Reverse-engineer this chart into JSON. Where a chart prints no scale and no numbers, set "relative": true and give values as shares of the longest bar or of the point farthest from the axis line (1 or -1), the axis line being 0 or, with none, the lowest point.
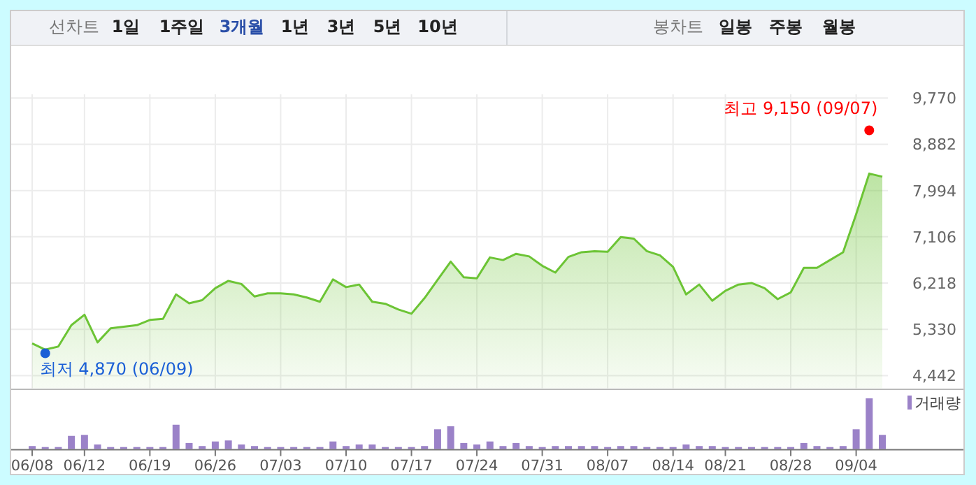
{
  "chart_data": [
    {
      "type": "other",
      "annotations": [
        "선차트",
        "1일",
        "1주일",
        "3개월",
        "1년",
        "3년",
        "5년",
        "10년",
        "봉차트",
        "일봉",
        "주봉",
        "월봉"
      ]
    },
    {
      "type": "area",
      "annotations": [
        "최고 9,150 (09/07)",
        "최저 4,870 (06/09)"
      ],
      "series": [
        {
          "type": "area",
          "color": "#6cc435",
          "values": [
            5060,
            4940,
            5000,
            5410,
            5610,
            5080,
            5350,
            5380,
            5410,
            5510,
            5530,
            6000,
            5830,
            5890,
            6120,
            6260,
            6200,
            5960,
            6020,
            6020,
            6000,
            5940,
            5860,
            6290,
            6140,
            6190,
            5860,
            5820,
            5710,
            5630,
            5930,
            6280,
            6630,
            6330,
            6310,
            6710,
            6660,
            6780,
            6730,
            6550,
            6420,
            6720,
            6810,
            6830,
            6820,
            7100,
            7070,
            6830,
            6750,
            6530,
            6000,
            6190,
            5880,
            6070,
            6190,
            6220,
            6120,
            5910,
            6040,
            6510,
            6510,
            6660,
            6810,
            7540,
            8320,
            8260
          ]
        },
        {
          "type": "scatter",
          "color": "#ff0000",
          "values": [
            null,
            null,
            null,
            null,
            null,
            null,
            null,
            null,
            null,
            null,
            null,
            null,
            null,
            null,
            null,
            null,
            null,
            null,
            null,
            null,
            null,
            null,
            null,
            null,
            null,
            null,
            null,
            null,
            null,
            null,
            null,
            null,
            null,
            null,
            null,
            null,
            null,
            null,
            null,
            null,
            null,
            null,
            null,
            null,
            null,
            null,
            null,
            null,
            null,
            null,
            null,
            null,
            null,
            null,
            null,
            null,
            null,
            null,
            null,
            null,
            null,
            null,
            null,
            null,
            9150,
            null
          ]
        },
        {
          "type": "scatter",
          "color": "#1a5fd6",
          "values": [
            null,
            4870,
            null,
            null,
            null,
            null,
            null,
            null,
            null,
            null,
            null,
            null,
            null,
            null,
            null,
            null,
            null,
            null,
            null,
            null,
            null,
            null,
            null,
            null,
            null,
            null,
            null,
            null,
            null,
            null,
            null,
            null,
            null,
            null,
            null,
            null,
            null,
            null,
            null,
            null,
            null,
            null,
            null,
            null,
            null,
            null,
            null,
            null,
            null,
            null,
            null,
            null,
            null,
            null,
            null,
            null,
            null,
            null,
            null,
            null,
            null,
            null,
            null,
            null,
            null,
            null
          ]
        }
      ],
      "ylim": [
        4185,
        10780
      ],
      "yticks": [
        {
          "value": 4442,
          "label": "4,442"
        },
        {
          "value": 5330,
          "label": "5,330"
        },
        {
          "value": 6218,
          "label": "6,218"
        },
        {
          "value": 7106,
          "label": "7,106"
        },
        {
          "value": 7994,
          "label": "7,994"
        },
        {
          "value": 8882,
          "label": "8,882"
        },
        {
          "value": 9770,
          "label": "9,770"
        }
      ],
      "grid": true,
      "tick_labels": "y"
    },
    {
      "type": "bar",
      "relative": true,
      "legend": "top right",
      "tick_labels": "x",
      "categories": [
        "06/08",
        null,
        null,
        null,
        "06/12",
        null,
        null,
        null,
        null,
        "06/19",
        null,
        null,
        null,
        null,
        "06/26",
        null,
        null,
        null,
        null,
        "07/03",
        null,
        null,
        null,
        null,
        "07/10",
        null,
        null,
        null,
        null,
        "07/17",
        null,
        null,
        null,
        null,
        "07/24",
        null,
        null,
        null,
        null,
        "07/31",
        null,
        null,
        null,
        null,
        "08/07",
        null,
        null,
        null,
        null,
        "08/14",
        null,
        null,
        null,
        "08/21",
        null,
        null,
        null,
        null,
        "08/28",
        null,
        null,
        null,
        null,
        "09/04",
        null,
        null
      ],
      "series": [
        {
          "name": "거래량",
          "color": "#9b82c8",
          "values": [
            0.06,
            0.04,
            0.04,
            0.26,
            0.28,
            0.09,
            0.04,
            0.04,
            0.04,
            0.04,
            0.04,
            0.48,
            0.12,
            0.06,
            0.15,
            0.17,
            0.09,
            0.06,
            0.04,
            0.04,
            0.04,
            0.04,
            0.04,
            0.15,
            0.06,
            0.09,
            0.09,
            0.04,
            0.04,
            0.04,
            0.06,
            0.39,
            0.45,
            0.12,
            0.09,
            0.15,
            0.06,
            0.12,
            0.06,
            0.04,
            0.06,
            0.06,
            0.06,
            0.06,
            0.04,
            0.06,
            0.06,
            0.04,
            0.04,
            0.04,
            0.09,
            0.06,
            0.06,
            0.04,
            0.04,
            0.04,
            0.04,
            0.04,
            0.04,
            0.12,
            0.06,
            0.04,
            0.06,
            0.39,
            1,
            0.28
          ]
        }
      ]
    }
  ]
}
